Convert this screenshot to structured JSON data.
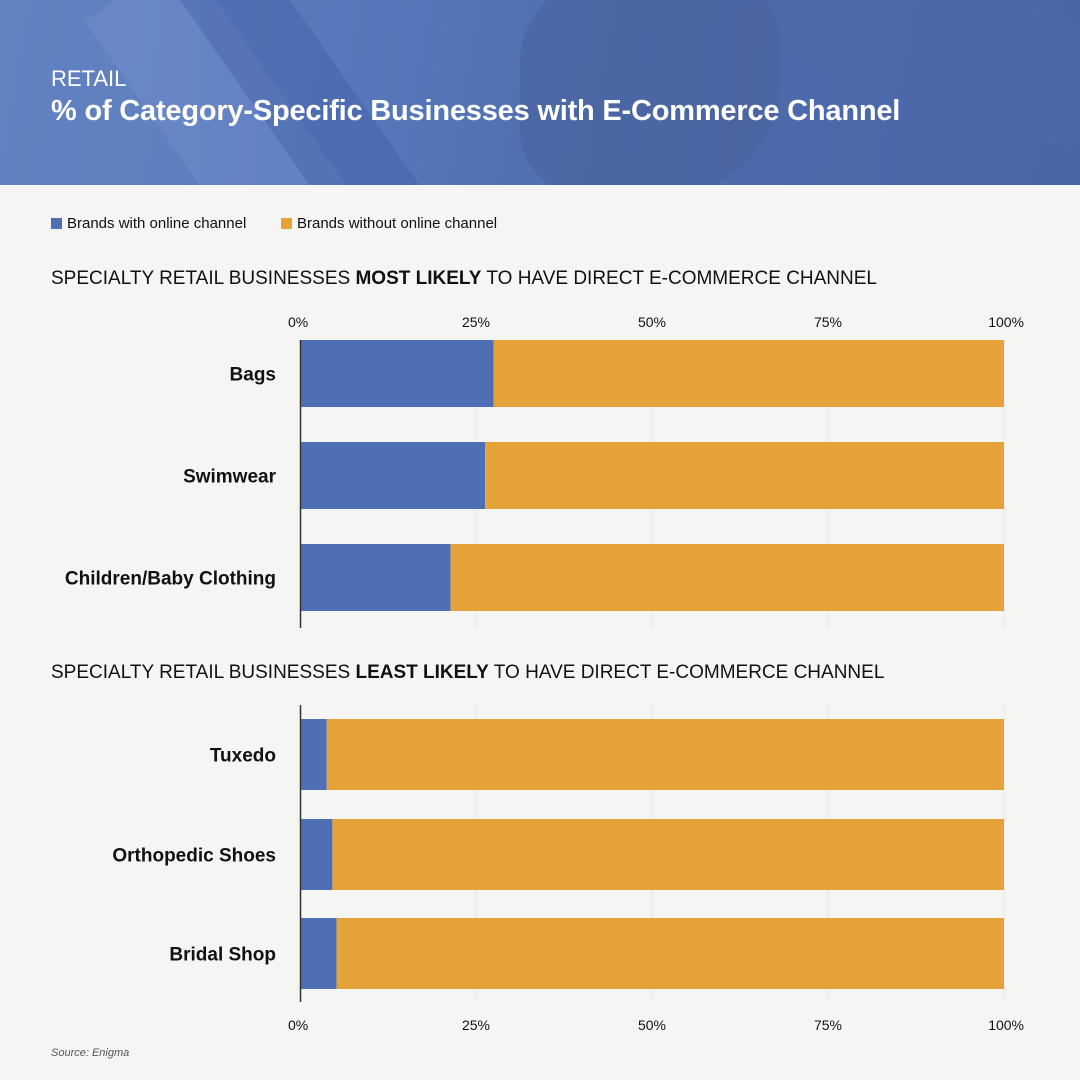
{
  "header": {
    "subtitle": "RETAIL",
    "title": "% of Category-Specific Businesses with E-Commerce Channel"
  },
  "legend": {
    "with_label": "Brands with online channel",
    "without_label": "Brands without online channel"
  },
  "colors": {
    "with_online": "#4f6fb5",
    "without_online": "#e5a238",
    "gridline": "#e6e6e3",
    "axis": "#333333"
  },
  "sections": {
    "most": {
      "prefix": "SPECIALTY RETAIL BUSINESSES ",
      "emphasis": "MOST LIKELY",
      "suffix": " TO HAVE DIRECT E-COMMERCE CHANNEL"
    },
    "least": {
      "prefix": "SPECIALTY RETAIL BUSINESSES ",
      "emphasis": "LEAST LIKELY",
      "suffix": " TO HAVE DIRECT E-COMMERCE CHANNEL"
    }
  },
  "source": "Source: Enigma",
  "chart_data": [
    {
      "type": "bar",
      "orientation": "horizontal",
      "stacked": true,
      "title": "SPECIALTY RETAIL BUSINESSES MOST LIKELY TO HAVE DIRECT E-COMMERCE CHANNEL",
      "categories": [
        "Bags",
        "Swimwear",
        "Children/Baby Clothing"
      ],
      "series": [
        {
          "name": "Brands with online channel",
          "values": [
            27.5,
            26.3,
            21.4
          ]
        },
        {
          "name": "Brands without online channel",
          "values": [
            72.5,
            73.7,
            78.6
          ]
        }
      ],
      "xlim": [
        0,
        100
      ],
      "tick_labels": [
        "0%",
        "25%",
        "50%",
        "75%",
        "100%"
      ],
      "axis_position": "top",
      "grid": true
    },
    {
      "type": "bar",
      "orientation": "horizontal",
      "stacked": true,
      "title": "SPECIALTY RETAIL BUSINESSES LEAST LIKELY TO HAVE DIRECT E-COMMERCE CHANNEL",
      "categories": [
        "Tuxedo",
        "Orthopedic Shoes",
        "Bridal Shop"
      ],
      "series": [
        {
          "name": "Brands with online channel",
          "values": [
            3.8,
            4.6,
            5.2
          ]
        },
        {
          "name": "Brands without online channel",
          "values": [
            96.2,
            95.4,
            94.8
          ]
        }
      ],
      "xlim": [
        0,
        100
      ],
      "tick_labels": [
        "0%",
        "25%",
        "50%",
        "75%",
        "100%"
      ],
      "axis_position": "bottom",
      "grid": true
    }
  ]
}
